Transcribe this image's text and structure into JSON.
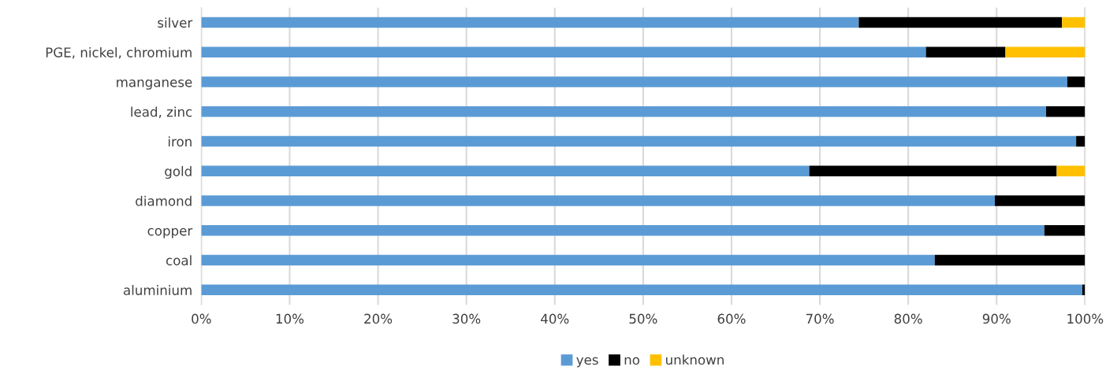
{
  "chart_data": {
    "type": "bar",
    "orientation": "horizontal",
    "stacked": true,
    "categories": [
      "silver",
      "PGE, nickel, chromium",
      "manganese",
      "lead, zinc",
      "iron",
      "gold",
      "diamond",
      "copper",
      "coal",
      "aluminium"
    ],
    "series": [
      {
        "name": "yes",
        "color": "#5b9bd5",
        "values": [
          74.4,
          82.0,
          98.0,
          95.6,
          99.0,
          68.8,
          89.8,
          95.4,
          83.0,
          99.7
        ]
      },
      {
        "name": "no",
        "color": "#000000",
        "values": [
          23.0,
          9.0,
          2.0,
          4.4,
          1.0,
          28.0,
          10.2,
          4.6,
          17.0,
          0.3
        ]
      },
      {
        "name": "unknown",
        "color": "#ffc000",
        "values": [
          2.6,
          9.0,
          0,
          0,
          0,
          3.2,
          0,
          0,
          0,
          0
        ]
      }
    ],
    "xlim": [
      0,
      100
    ],
    "xticks": [
      {
        "value": 0,
        "label": "0%"
      },
      {
        "value": 10,
        "label": "10%"
      },
      {
        "value": 20,
        "label": "20%"
      },
      {
        "value": 30,
        "label": "30%"
      },
      {
        "value": 40,
        "label": "40%"
      },
      {
        "value": 50,
        "label": "50%"
      },
      {
        "value": 60,
        "label": "60%"
      },
      {
        "value": 70,
        "label": "70%"
      },
      {
        "value": 80,
        "label": "80%"
      },
      {
        "value": 90,
        "label": "90%"
      },
      {
        "value": 100,
        "label": "100%"
      }
    ],
    "grid": "x",
    "legend": "bottom"
  }
}
